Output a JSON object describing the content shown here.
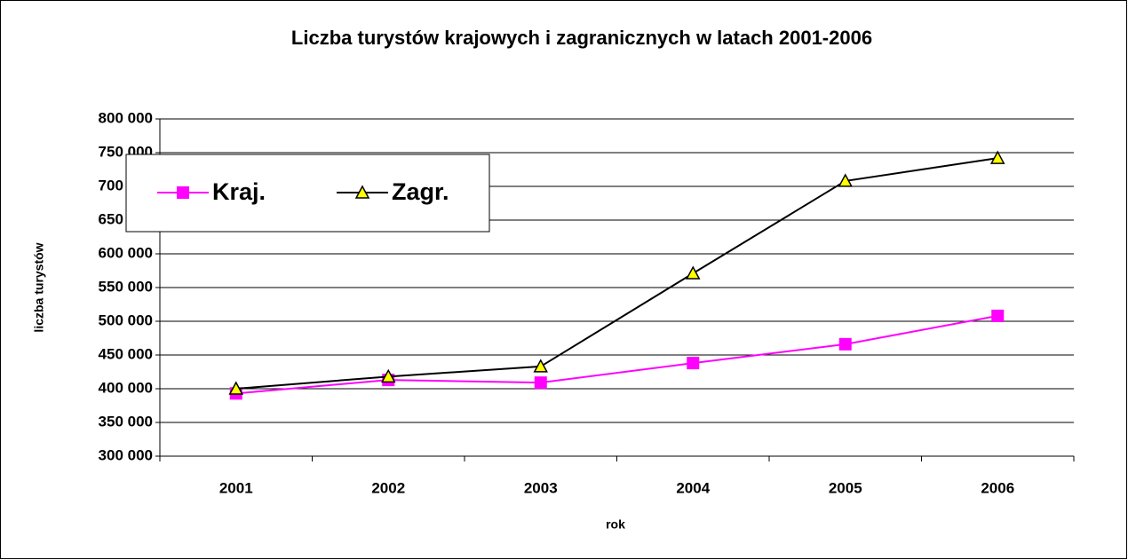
{
  "chart_data": {
    "type": "line",
    "title": "Liczba turystów krajowych i zagranicznych w latach 2001-2006",
    "x_label": "rok",
    "y_label": "liczba turystów",
    "categories": [
      "2001",
      "2002",
      "2003",
      "2004",
      "2005",
      "2006"
    ],
    "series": [
      {
        "name": "Kraj.",
        "color": "#ff00ff",
        "marker": "square",
        "marker_color": "#ff00ff",
        "values": [
          393000,
          413000,
          409000,
          438000,
          466000,
          508000
        ]
      },
      {
        "name": "Zagr.",
        "color": "#000000",
        "marker": "triangle",
        "marker_color": "#ffff00",
        "values": [
          400000,
          418000,
          433000,
          571000,
          708000,
          742000
        ]
      }
    ],
    "ylim": [
      300000,
      800000
    ],
    "yticks": [
      {
        "value": 300000,
        "label": "300 000"
      },
      {
        "value": 350000,
        "label": "350 000"
      },
      {
        "value": 400000,
        "label": "400 000"
      },
      {
        "value": 450000,
        "label": "450 000"
      },
      {
        "value": 500000,
        "label": "500 000"
      },
      {
        "value": 550000,
        "label": "550 000"
      },
      {
        "value": 600000,
        "label": "600 000"
      },
      {
        "value": 650000,
        "label": "650 000"
      },
      {
        "value": 700000,
        "label": "700 000"
      },
      {
        "value": 750000,
        "label": "750 000"
      },
      {
        "value": 800000,
        "label": "800 000"
      }
    ],
    "grid": true,
    "legend": "top-left"
  }
}
